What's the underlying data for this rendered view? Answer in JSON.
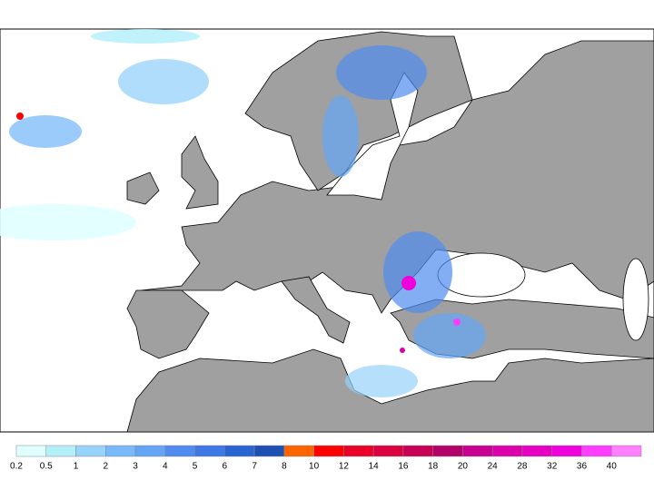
{
  "legend": {
    "items": [
      {
        "value": 0.2,
        "color": "#e0ffff"
      },
      {
        "value": 0.5,
        "color": "#b4f0fa"
      },
      {
        "value": 1,
        "color": "#96d2fa"
      },
      {
        "value": 2,
        "color": "#78b9fa"
      },
      {
        "value": 3,
        "color": "#64a5f5"
      },
      {
        "value": 4,
        "color": "#508cf0"
      },
      {
        "value": 5,
        "color": "#3c78e6"
      },
      {
        "value": 6,
        "color": "#2864d2"
      },
      {
        "value": 7,
        "color": "#1e50b4"
      },
      {
        "value": 8,
        "color": "#ff6400"
      },
      {
        "value": 10,
        "color": "#ff0000"
      },
      {
        "value": 12,
        "color": "#eb0028"
      },
      {
        "value": 14,
        "color": "#dc0040"
      },
      {
        "value": 16,
        "color": "#c80055"
      },
      {
        "value": 18,
        "color": "#b40069"
      },
      {
        "value": 20,
        "color": "#c80091"
      },
      {
        "value": 24,
        "color": "#dc00aa"
      },
      {
        "value": 28,
        "color": "#e600c3"
      },
      {
        "value": 32,
        "color": "#f000dc"
      },
      {
        "value": 36,
        "color": "#ff3cff"
      },
      {
        "value": 40,
        "color": "#ff80ff"
      }
    ]
  }
}
